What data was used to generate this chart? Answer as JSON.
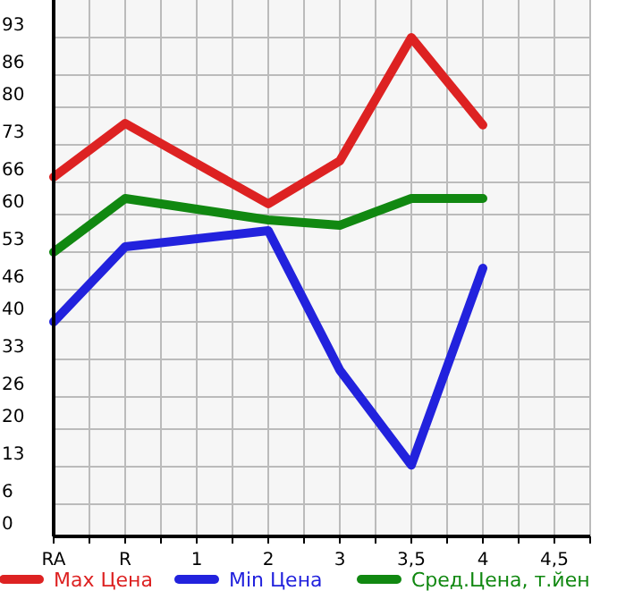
{
  "chart_data": {
    "type": "line",
    "categories": [
      "RA",
      "R",
      "1",
      "2",
      "3",
      "3,5",
      "4",
      "4,5"
    ],
    "ylim": [
      0,
      100
    ],
    "yticks": [
      0,
      6,
      13,
      20,
      26,
      33,
      40,
      46,
      53,
      60,
      66,
      73,
      80,
      86,
      93
    ],
    "grid": true,
    "legend": "bottom",
    "marker": "none",
    "line_style": "solid",
    "series": [
      {
        "name": "Max Цена",
        "color": "#dd2222",
        "values": [
          67,
          77,
          null,
          62,
          70,
          93,
          76.7,
          null
        ]
      },
      {
        "name": "Min Цена",
        "color": "#2222dd",
        "values": [
          40,
          54,
          null,
          57,
          31,
          13.3,
          50,
          null
        ]
      },
      {
        "name": "Сред.Цена, т.йен",
        "color": "#118811",
        "values": [
          53,
          63,
          null,
          59,
          58,
          63,
          63,
          null
        ]
      }
    ]
  }
}
